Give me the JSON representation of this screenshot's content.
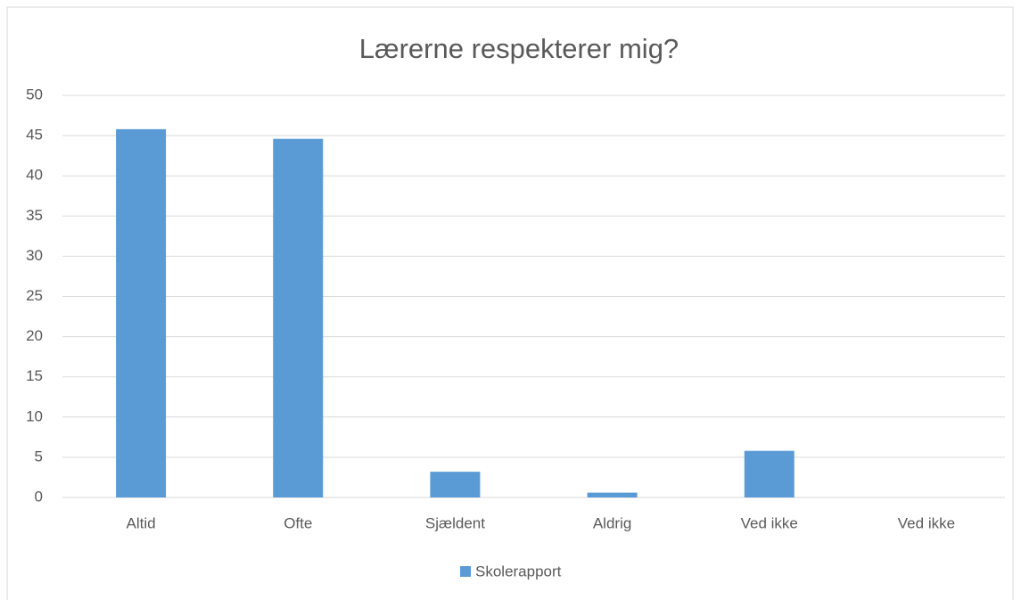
{
  "chart_data": {
    "type": "bar",
    "title": "Lærerne respekterer mig?",
    "categories": [
      "Altid",
      "Ofte",
      "Sjældent",
      "Aldrig",
      "Ved ikke",
      "Ved ikke"
    ],
    "series": [
      {
        "name": "Skolerapport",
        "color": "#5b9bd5",
        "values": [
          45.8,
          44.6,
          3.2,
          0.6,
          5.8,
          0
        ]
      }
    ],
    "ylim": [
      0,
      50
    ],
    "yticks": [
      0,
      5,
      10,
      15,
      20,
      25,
      30,
      35,
      40,
      45,
      50
    ],
    "grid": true,
    "legend": "bottom"
  }
}
